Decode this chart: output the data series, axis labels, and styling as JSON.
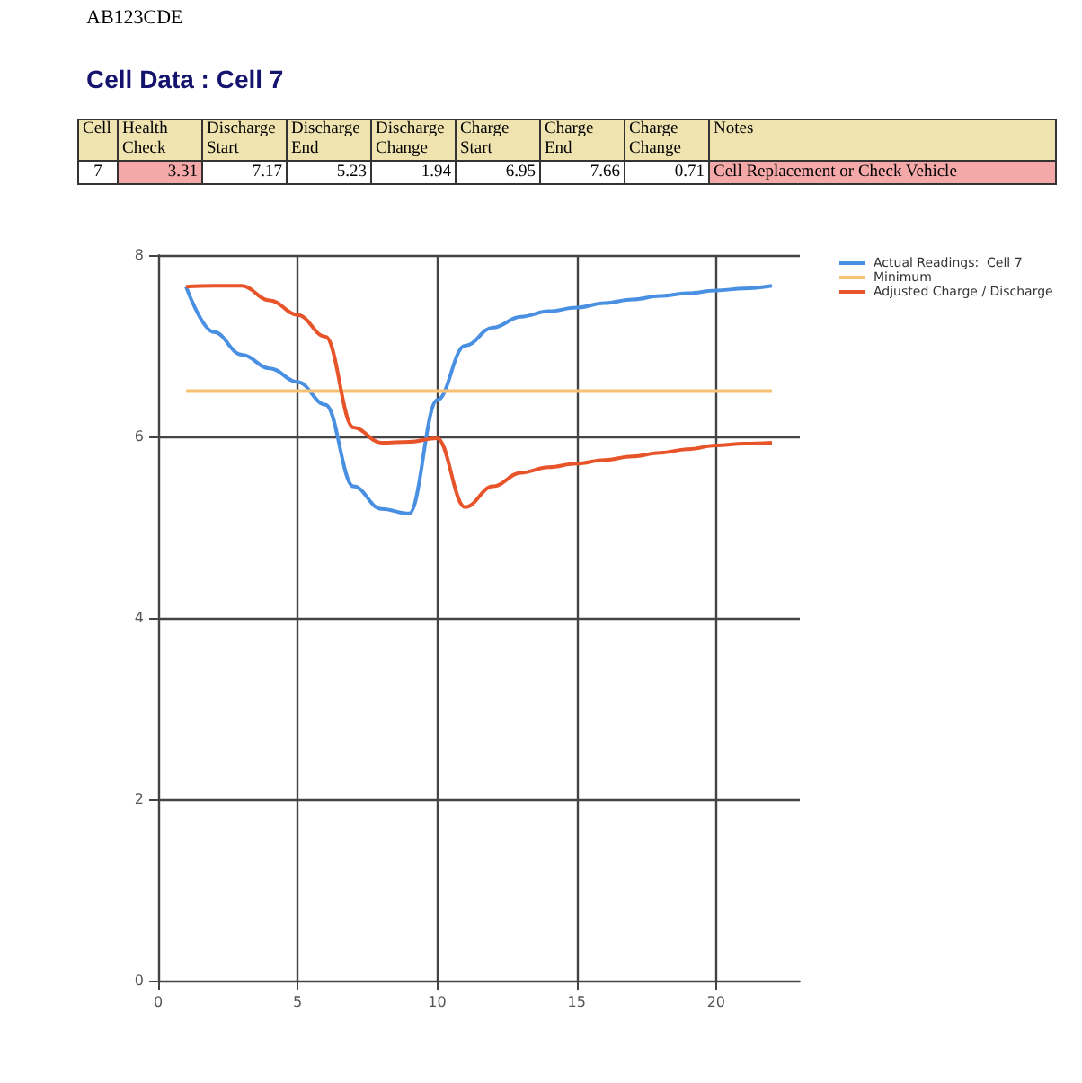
{
  "chart_data": [
    {
      "type": "other",
      "title": "AB123CDE",
      "subtitle": "Cell Data : Cell 7",
      "categories": [
        "Cell",
        "Health Check",
        "Discharge Start",
        "Discharge End",
        "Discharge Change",
        "Charge Start",
        "Charge End",
        "Charge Change",
        "Notes"
      ],
      "values": [
        7,
        3.31,
        7.17,
        5.23,
        1.94,
        6.95,
        7.66,
        0.71,
        null
      ],
      "data_labels": true,
      "annotations": [
        "Cell Replacement or Check Vehicle"
      ]
    },
    {
      "type": "line",
      "xlim": [
        0,
        23
      ],
      "xticks": [
        0,
        5,
        10,
        15,
        20
      ],
      "ylim": [
        0,
        8
      ],
      "yticks": [
        0,
        2,
        4,
        6,
        8
      ],
      "grid": true,
      "legend": "top right",
      "marker": "none",
      "series": [
        {
          "name": "Actual Readings:  Cell 7",
          "color": "#4a90e2",
          "x": [
            1,
            2,
            3,
            4,
            5,
            6,
            7,
            8,
            9,
            10,
            11,
            12,
            13,
            14,
            15,
            16,
            17,
            18,
            19,
            20,
            21,
            22
          ],
          "values": [
            7.65,
            7.15,
            6.9,
            6.75,
            6.6,
            6.35,
            5.45,
            5.2,
            5.15,
            6.4,
            7.0,
            7.2,
            7.32,
            7.38,
            7.42,
            7.47,
            7.51,
            7.55,
            7.58,
            7.61,
            7.63,
            7.66
          ]
        },
        {
          "name": "Minimum",
          "color": "#f7c274",
          "x": [
            1,
            22
          ],
          "values": [
            6.5,
            6.5
          ]
        },
        {
          "name": "Adjusted Charge / Discharge",
          "color": "#e8542a",
          "x": [
            1,
            2,
            3,
            4,
            5,
            6,
            7,
            8,
            9,
            10,
            11,
            12,
            13,
            14,
            15,
            16,
            17,
            18,
            19,
            20,
            21,
            22
          ],
          "values": [
            7.65,
            7.66,
            7.66,
            7.5,
            7.34,
            7.1,
            6.1,
            5.93,
            5.94,
            5.98,
            5.22,
            5.45,
            5.6,
            5.66,
            5.7,
            5.74,
            5.78,
            5.82,
            5.86,
            5.9,
            5.92,
            5.93
          ]
        }
      ]
    }
  ]
}
